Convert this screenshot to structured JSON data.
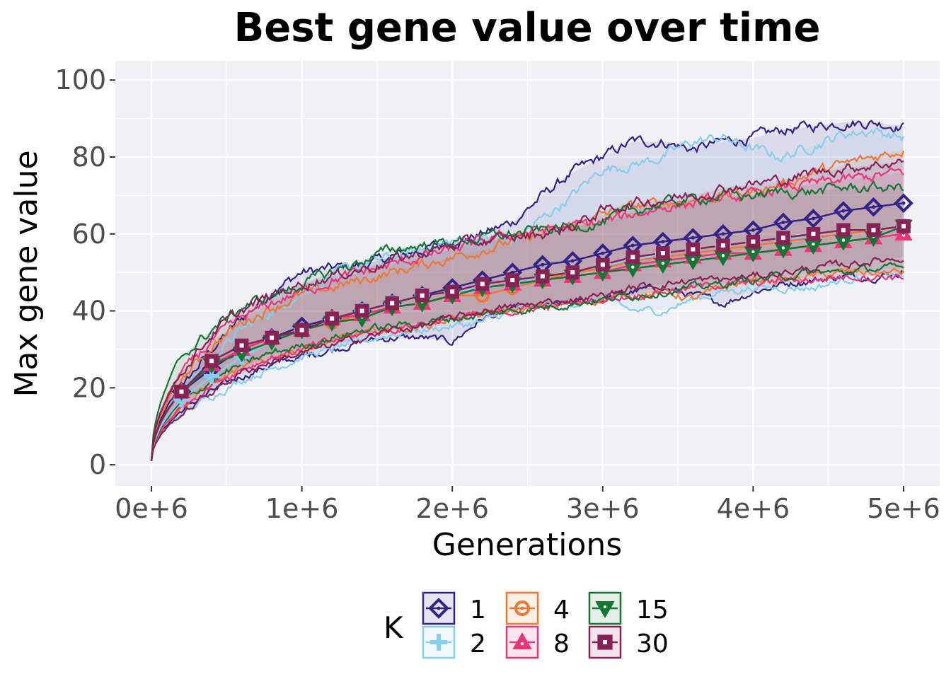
{
  "chart_data": {
    "type": "line",
    "title": "Best gene value over time",
    "xlabel": "Generations",
    "ylabel": "Max gene value",
    "xlim": [
      -240000,
      5240000
    ],
    "ylim": [
      -5.5,
      105
    ],
    "x_ticks": [
      0,
      1000000,
      2000000,
      3000000,
      4000000,
      5000000
    ],
    "x_tick_labels": [
      "0e+6",
      "1e+6",
      "2e+6",
      "3e+6",
      "4e+6",
      "5e+6"
    ],
    "y_ticks": [
      0,
      20,
      40,
      60,
      80,
      100
    ],
    "y_tick_labels": [
      "0",
      "20",
      "40",
      "60",
      "80",
      "100"
    ],
    "grid": true,
    "legend": {
      "title": "K",
      "position": "bottom"
    },
    "marker_x": [
      200000,
      400000,
      600000,
      800000,
      1000000,
      1200000,
      1400000,
      1600000,
      1800000,
      2000000,
      2200000,
      2400000,
      2600000,
      2800000,
      3000000,
      3200000,
      3400000,
      3600000,
      3800000,
      4000000,
      4200000,
      4400000,
      4600000,
      4800000,
      5000000
    ],
    "series": [
      {
        "name": "1",
        "color": "#332288",
        "marker": "diamond",
        "values": [
          19,
          25,
          30,
          33,
          36,
          38,
          40,
          42,
          44,
          46,
          48,
          50,
          52,
          53,
          55,
          57,
          58,
          59,
          60,
          61,
          63,
          64,
          66,
          67,
          68
        ],
        "upper": [
          20,
          30,
          38,
          45,
          50,
          51,
          52,
          54,
          56,
          58,
          60,
          63,
          70,
          76,
          80,
          84,
          84,
          82,
          84,
          85,
          87,
          88,
          89,
          89,
          88
        ],
        "lower": [
          14,
          19,
          23,
          26,
          28,
          30,
          32,
          33,
          33,
          32,
          38,
          40,
          41,
          42,
          43,
          45,
          46,
          44,
          42,
          45,
          47,
          48,
          49,
          49,
          50
        ]
      },
      {
        "name": "2",
        "color": "#88CCEE",
        "marker": "plus",
        "values": [
          17,
          23,
          28,
          32,
          35,
          38,
          40,
          42,
          44,
          45,
          46,
          47,
          49,
          50,
          52,
          53,
          55,
          56,
          57,
          58,
          59,
          59,
          60,
          61,
          62
        ],
        "upper": [
          19,
          28,
          35,
          40,
          45,
          49,
          52,
          54,
          56,
          58,
          59,
          58,
          64,
          70,
          77,
          78,
          80,
          84,
          85,
          82,
          80,
          83,
          86,
          87,
          85
        ],
        "lower": [
          13,
          18,
          22,
          25,
          28,
          30,
          32,
          34,
          35,
          36,
          37,
          40,
          41,
          42,
          43,
          40,
          40,
          43,
          45,
          46,
          46,
          46,
          48,
          50,
          49
        ]
      },
      {
        "name": "4",
        "color": "#EE7733",
        "marker": "circle",
        "values": [
          19,
          26,
          30,
          33,
          35,
          37,
          39,
          41,
          42,
          44,
          44,
          46,
          48,
          50,
          51,
          53,
          54,
          55,
          56,
          57,
          58,
          59,
          60,
          61,
          62
        ],
        "upper": [
          22,
          31,
          37,
          41,
          44,
          46,
          48,
          50,
          52,
          54,
          56,
          58,
          60,
          62,
          65,
          67,
          68,
          69,
          70,
          71,
          73,
          76,
          78,
          80,
          82
        ],
        "lower": [
          15,
          21,
          25,
          28,
          30,
          32,
          34,
          35,
          36,
          38,
          39,
          40,
          41,
          42,
          43,
          44,
          45,
          43,
          46,
          48,
          48,
          49,
          50,
          50,
          50
        ]
      },
      {
        "name": "8",
        "color": "#EE3377",
        "marker": "triangle-up",
        "values": [
          19,
          26,
          30,
          33,
          35,
          38,
          39,
          41,
          42,
          44,
          46,
          47,
          48,
          49,
          50,
          52,
          53,
          54,
          55,
          55,
          56,
          57,
          58,
          59,
          60
        ],
        "upper": [
          24,
          32,
          38,
          42,
          45,
          48,
          50,
          52,
          54,
          56,
          58,
          60,
          61,
          62,
          63,
          65,
          67,
          68,
          69,
          70,
          72,
          73,
          74,
          75,
          76
        ],
        "lower": [
          15,
          21,
          25,
          28,
          30,
          32,
          34,
          35,
          37,
          38,
          39,
          40,
          41,
          42,
          43,
          44,
          45,
          46,
          47,
          47,
          48,
          48,
          49,
          49,
          49
        ]
      },
      {
        "name": "15",
        "color": "#117733",
        "marker": "triangle-down",
        "values": [
          19,
          26,
          29,
          32,
          35,
          37,
          38,
          41,
          42,
          44,
          46,
          47,
          48,
          49,
          50,
          51,
          52,
          53,
          54,
          55,
          56,
          57,
          58,
          59,
          62
        ],
        "upper": [
          28,
          35,
          41,
          44,
          47,
          50,
          53,
          56,
          57,
          58,
          59,
          60,
          61,
          62,
          63,
          66,
          68,
          69,
          70,
          70,
          71,
          71,
          72,
          72,
          72
        ],
        "lower": [
          16,
          22,
          26,
          29,
          31,
          33,
          35,
          36,
          37,
          38,
          39,
          40,
          41,
          42,
          43,
          44,
          45,
          46,
          47,
          48,
          49,
          50,
          50,
          51,
          51
        ]
      },
      {
        "name": "30",
        "color": "#882255",
        "marker": "square",
        "values": [
          19,
          27,
          31,
          33,
          35,
          38,
          40,
          42,
          44,
          45,
          47,
          48,
          49,
          50,
          52,
          54,
          55,
          56,
          57,
          58,
          59,
          60,
          61,
          61,
          62
        ],
        "upper": [
          24,
          34,
          40,
          44,
          47,
          49,
          51,
          53,
          55,
          57,
          58,
          59,
          60,
          62,
          66,
          68,
          69,
          70,
          72,
          73,
          74,
          76,
          77,
          78,
          79
        ],
        "lower": [
          13,
          19,
          24,
          27,
          29,
          31,
          33,
          35,
          36,
          38,
          40,
          41,
          42,
          43,
          44,
          46,
          47,
          48,
          48,
          49,
          50,
          51,
          52,
          53,
          54
        ]
      }
    ]
  }
}
